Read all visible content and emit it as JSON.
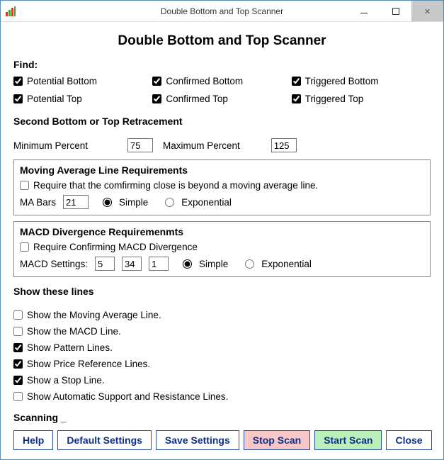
{
  "window": {
    "title": "Double Bottom and Top Scanner"
  },
  "page_title": "Double Bottom and Top Scanner",
  "find": {
    "label": "Find:",
    "items": [
      {
        "label": "Potential Bottom",
        "checked": true
      },
      {
        "label": "Confirmed Bottom",
        "checked": true
      },
      {
        "label": "Triggered Bottom",
        "checked": true
      },
      {
        "label": "Potential Top",
        "checked": true
      },
      {
        "label": "Confirmed Top",
        "checked": true
      },
      {
        "label": "Triggered Top",
        "checked": true
      }
    ]
  },
  "retracement": {
    "title": "Second Bottom or Top Retracement",
    "min_label": "Minimum Percent",
    "min_value": "75",
    "max_label": "Maximum Percent",
    "max_value": "125"
  },
  "ma_panel": {
    "title": "Moving Average Line Requirements",
    "require_label": "Require that the comfirming close is beyond a moving average line.",
    "require_checked": false,
    "bars_label": "MA Bars",
    "bars_value": "21",
    "type_simple": "Simple",
    "type_exp": "Exponential",
    "type_selected": "simple"
  },
  "macd_panel": {
    "title": "MACD Divergence Requiremenmts",
    "require_label": "Require Confirming MACD Divergence",
    "require_checked": false,
    "settings_label": "MACD Settings:",
    "v1": "5",
    "v2": "34",
    "v3": "1",
    "type_simple": "Simple",
    "type_exp": "Exponential",
    "type_selected": "simple"
  },
  "show": {
    "title": "Show these lines",
    "items": [
      {
        "label": "Show the Moving Average Line.",
        "checked": false
      },
      {
        "label": "Show the MACD Line.",
        "checked": false
      },
      {
        "label": "Show Pattern Lines.",
        "checked": true
      },
      {
        "label": "Show Price Reference Lines.",
        "checked": true
      },
      {
        "label": "Show a Stop Line.",
        "checked": true
      },
      {
        "label": "Show Automatic Support and Resistance Lines.",
        "checked": false
      }
    ]
  },
  "scanning": {
    "label": "Scanning _"
  },
  "buttons": {
    "help": "Help",
    "defaults": "Default Settings",
    "save": "Save Settings",
    "stop": "Stop Scan",
    "start": "Start Scan",
    "close": "Close"
  },
  "colors": {
    "button_border": "#2a4ea0",
    "button_text": "#0b2e8a",
    "stop_bg": "#f7c6c6",
    "start_bg": "#b9f0b9"
  }
}
